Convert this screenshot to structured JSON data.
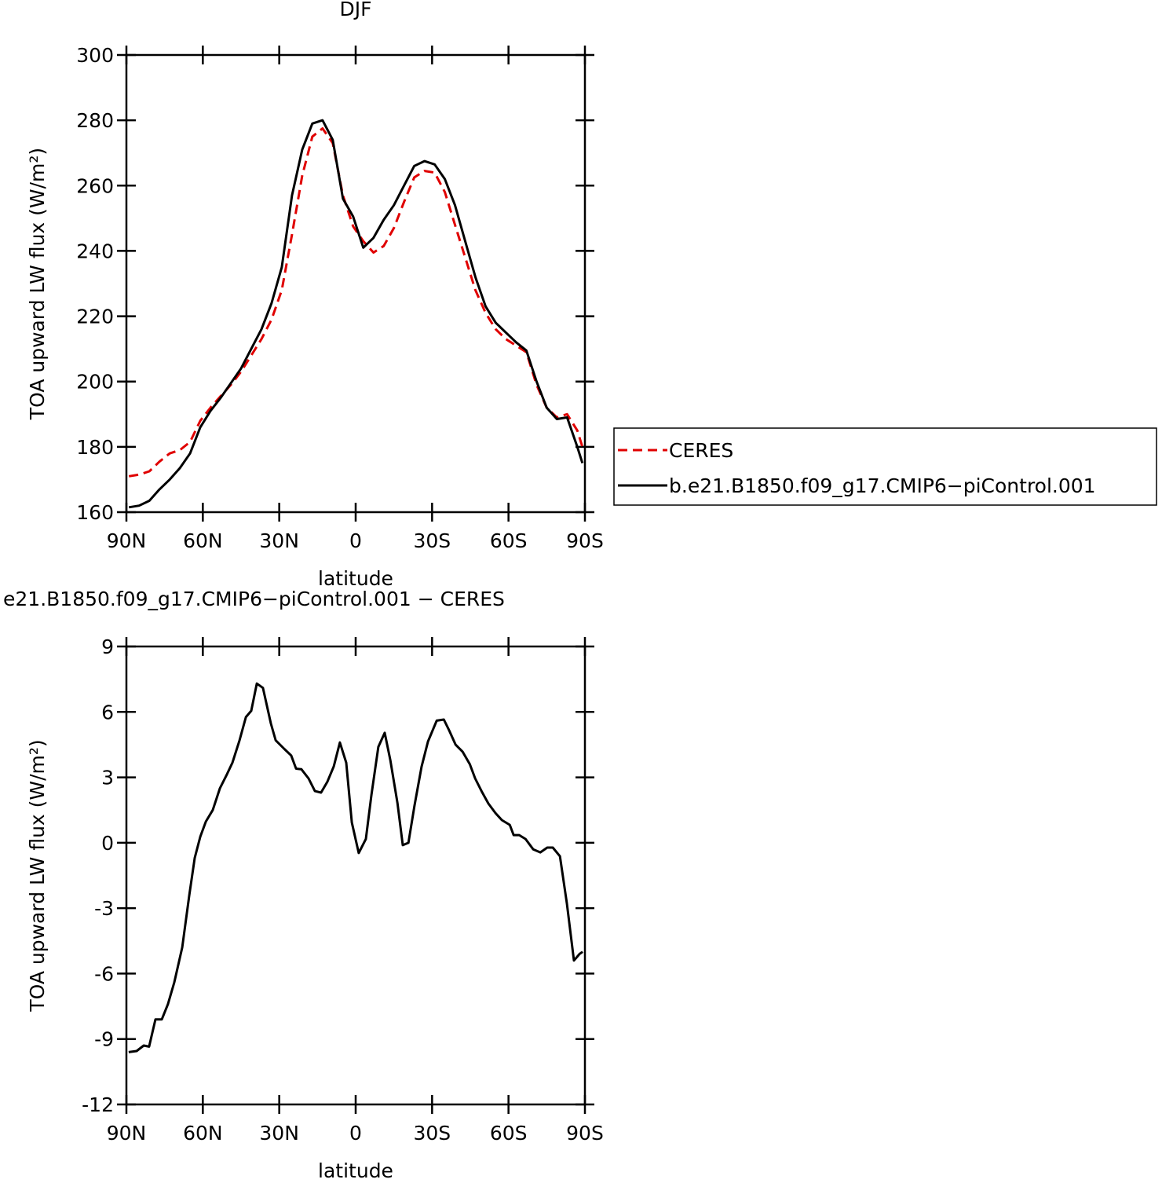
{
  "chart_data": [
    {
      "type": "line",
      "title": "DJF",
      "xlabel": "latitude",
      "ylabel": "TOA upward LW flux (W/m²)",
      "x": [
        89,
        85,
        81,
        77,
        73,
        69,
        65,
        61,
        57,
        53,
        49,
        45,
        41,
        37,
        33,
        29,
        25,
        21,
        17,
        13,
        9,
        5,
        1,
        -3,
        -7,
        -11,
        -15,
        -19,
        -23,
        -27,
        -31,
        -35,
        -39,
        -43,
        -47,
        -51,
        -55,
        -59,
        -63,
        -67,
        -71,
        -75,
        -79,
        -83,
        -87,
        -89
      ],
      "series": [
        {
          "name": "CERES",
          "color": "#e00000",
          "linestyle": "dashed",
          "values": [
            171,
            171.5,
            172.5,
            175.5,
            178,
            179,
            181.5,
            188,
            192,
            195.5,
            199,
            203,
            208,
            213,
            219,
            228,
            245,
            263,
            275,
            277.5,
            273,
            257,
            247.5,
            243,
            239.5,
            241.5,
            247,
            255,
            262.5,
            264.5,
            264,
            258,
            248,
            238,
            228,
            221,
            216,
            213,
            211,
            209,
            199,
            192,
            189,
            190,
            185,
            180
          ]
        },
        {
          "name": "b.e21.B1850.f09_g17.CMIP6−piControl.001",
          "color": "#000000",
          "linestyle": "solid",
          "values": [
            161.5,
            162,
            163.5,
            167,
            170,
            173.5,
            178,
            186,
            191,
            195,
            199.5,
            204,
            210,
            216,
            224,
            235,
            257,
            271,
            279,
            280,
            274,
            256,
            250.5,
            241,
            244,
            249.5,
            254,
            260,
            266,
            267.5,
            266.5,
            262,
            254,
            243,
            232,
            223,
            218,
            215,
            212,
            209.5,
            200,
            192,
            188.5,
            189,
            180,
            175
          ]
        }
      ],
      "xlim": [
        90,
        -90
      ],
      "xticks": [
        {
          "value": 90,
          "label": "90N"
        },
        {
          "value": 60,
          "label": "60N"
        },
        {
          "value": 30,
          "label": "30N"
        },
        0,
        {
          "value": -30,
          "label": "30S"
        },
        {
          "value": -60,
          "label": "60S"
        },
        {
          "value": -90,
          "label": "90S"
        }
      ],
      "ylim": [
        160,
        300
      ],
      "yticks": [
        160,
        180,
        200,
        220,
        240,
        260,
        280,
        300
      ],
      "legend": "right"
    },
    {
      "type": "line",
      "title": "e21.B1850.f09_g17.CMIP6−piControl.001  −  CERES",
      "xlabel": "latitude",
      "ylabel": "TOA upward LW flux (W/m²)",
      "x": [
        89.1,
        86,
        83.2,
        81.1,
        78.6,
        76.1,
        73.7,
        71.2,
        68.1,
        65.3,
        63.2,
        61,
        58.8,
        56.1,
        53.3,
        50.5,
        48.4,
        45.6,
        43.1,
        41,
        38.8,
        36.4,
        33.3,
        31.4,
        28,
        25.3,
        23.4,
        21.3,
        18.5,
        16,
        13.6,
        11.1,
        8.6,
        6.2,
        3.7,
        1.5,
        -1.2,
        -4,
        -6.2,
        -8.9,
        -11.4,
        -13.6,
        -16.4,
        -18.5,
        -20.7,
        -23.1,
        -25.9,
        -28.4,
        -31.8,
        -34.6,
        -36.7,
        -39.2,
        -42,
        -44.8,
        -46.9,
        -49.4,
        -52.1,
        -54.9,
        -57.4,
        -60.5,
        -62,
        -64.2,
        -66.7,
        -69.7,
        -72.5,
        -75.2,
        -77.4,
        -80.2,
        -82.9,
        -85.7,
        -87.9,
        -89.1
      ],
      "series": [
        {
          "color": "#000000",
          "linestyle": "solid",
          "values": [
            -9.6,
            -9.55,
            -9.3,
            -9.35,
            -8.1,
            -8.1,
            -7.4,
            -6.4,
            -4.8,
            -2.4,
            -0.7,
            0.28,
            0.97,
            1.5,
            2.5,
            3.15,
            3.67,
            4.7,
            5.76,
            6.05,
            7.3,
            7.1,
            5.47,
            4.7,
            4.3,
            4.0,
            3.4,
            3.37,
            2.95,
            2.37,
            2.3,
            2.8,
            3.5,
            4.6,
            3.67,
            0.93,
            -0.47,
            0.17,
            2.2,
            4.4,
            5.04,
            3.8,
            1.83,
            -0.11,
            0,
            1.7,
            3.5,
            4.64,
            5.6,
            5.65,
            5.15,
            4.5,
            4.17,
            3.6,
            2.95,
            2.37,
            1.8,
            1.36,
            1.04,
            0.82,
            0.35,
            0.35,
            0.17,
            -0.3,
            -0.44,
            -0.22,
            -0.22,
            -0.62,
            -2.78,
            -5.4,
            -5.1,
            -5.0
          ]
        }
      ],
      "xlim": [
        90,
        -90
      ],
      "xticks": [
        {
          "value": 90,
          "label": "90N"
        },
        {
          "value": 60,
          "label": "60N"
        },
        {
          "value": 30,
          "label": "30N"
        },
        0,
        {
          "value": -30,
          "label": "30S"
        },
        {
          "value": -60,
          "label": "60S"
        },
        {
          "value": -90,
          "label": "90S"
        }
      ],
      "ylim": [
        -12,
        9
      ],
      "yticks": [
        -12,
        -9,
        -6,
        -3,
        0,
        3,
        6,
        9
      ]
    }
  ]
}
